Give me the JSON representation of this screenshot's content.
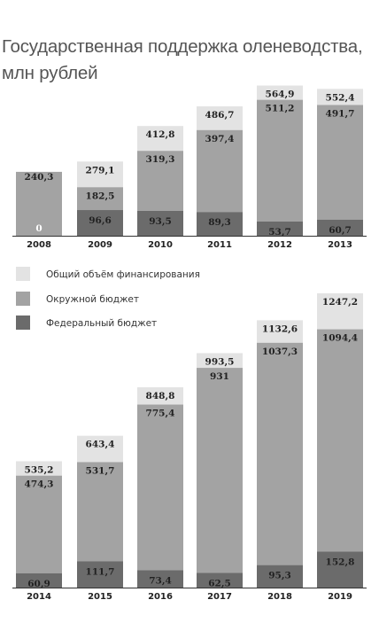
{
  "title": {
    "line1": "Государственная поддержка оленеводства,",
    "line2": "млн рублей"
  },
  "colors": {
    "total": "#e3e3e3",
    "regional": "#a3a3a3",
    "federal": "#6b6b6b",
    "axis": "#333333"
  },
  "chart_data": [
    {
      "type": "bar",
      "stacked": true,
      "categories": [
        "2008",
        "2009",
        "2010",
        "2011",
        "2012",
        "2013"
      ],
      "series": [
        {
          "name": "Федеральный бюджет",
          "values": [
            0,
            96.6,
            93.5,
            89.3,
            53.7,
            60.7
          ],
          "labels": [
            "0",
            "96,6",
            "93,5",
            "89,3",
            "53,7",
            "60,7"
          ]
        },
        {
          "name": "Окружной бюджет",
          "values": [
            240.3,
            182.5,
            319.3,
            397.4,
            511.2,
            491.7
          ],
          "labels": [
            "240,3",
            "182,5",
            "319,3",
            "397,4",
            "511,2",
            "491,7"
          ]
        },
        {
          "name": "Общий объём финансирования",
          "values": [
            240.3,
            279.1,
            412.8,
            486.7,
            564.9,
            552.4
          ],
          "labels": [
            "",
            "279,1",
            "412,8",
            "486,7",
            "564,9",
            "552,4"
          ]
        }
      ]
    },
    {
      "type": "bar",
      "stacked": true,
      "categories": [
        "2014",
        "2015",
        "2016",
        "2017",
        "2018",
        "2019"
      ],
      "series": [
        {
          "name": "Федеральный бюджет",
          "values": [
            60.9,
            111.7,
            73.4,
            62.5,
            95.3,
            152.8
          ],
          "labels": [
            "60,9",
            "111,7",
            "73,4",
            "62,5",
            "95,3",
            "152,8"
          ]
        },
        {
          "name": "Окружной бюджет",
          "values": [
            474.3,
            531.7,
            775.4,
            931,
            1037.3,
            1094.4
          ],
          "labels": [
            "474,3",
            "531,7",
            "775,4",
            "931",
            "1037,3",
            "1094,4"
          ]
        },
        {
          "name": "Общий объём финансирования",
          "values": [
            535.2,
            643.4,
            848.8,
            993.5,
            1132.6,
            1247.2
          ],
          "labels": [
            "535,2",
            "643,4",
            "848,8",
            "993,5",
            "1132,6",
            "1247,2"
          ]
        }
      ]
    }
  ],
  "legend": [
    {
      "key": "total",
      "label": "Общий объём финансирования"
    },
    {
      "key": "regional",
      "label": "Окружной бюджет"
    },
    {
      "key": "federal",
      "label": "Федеральный бюджет"
    }
  ]
}
